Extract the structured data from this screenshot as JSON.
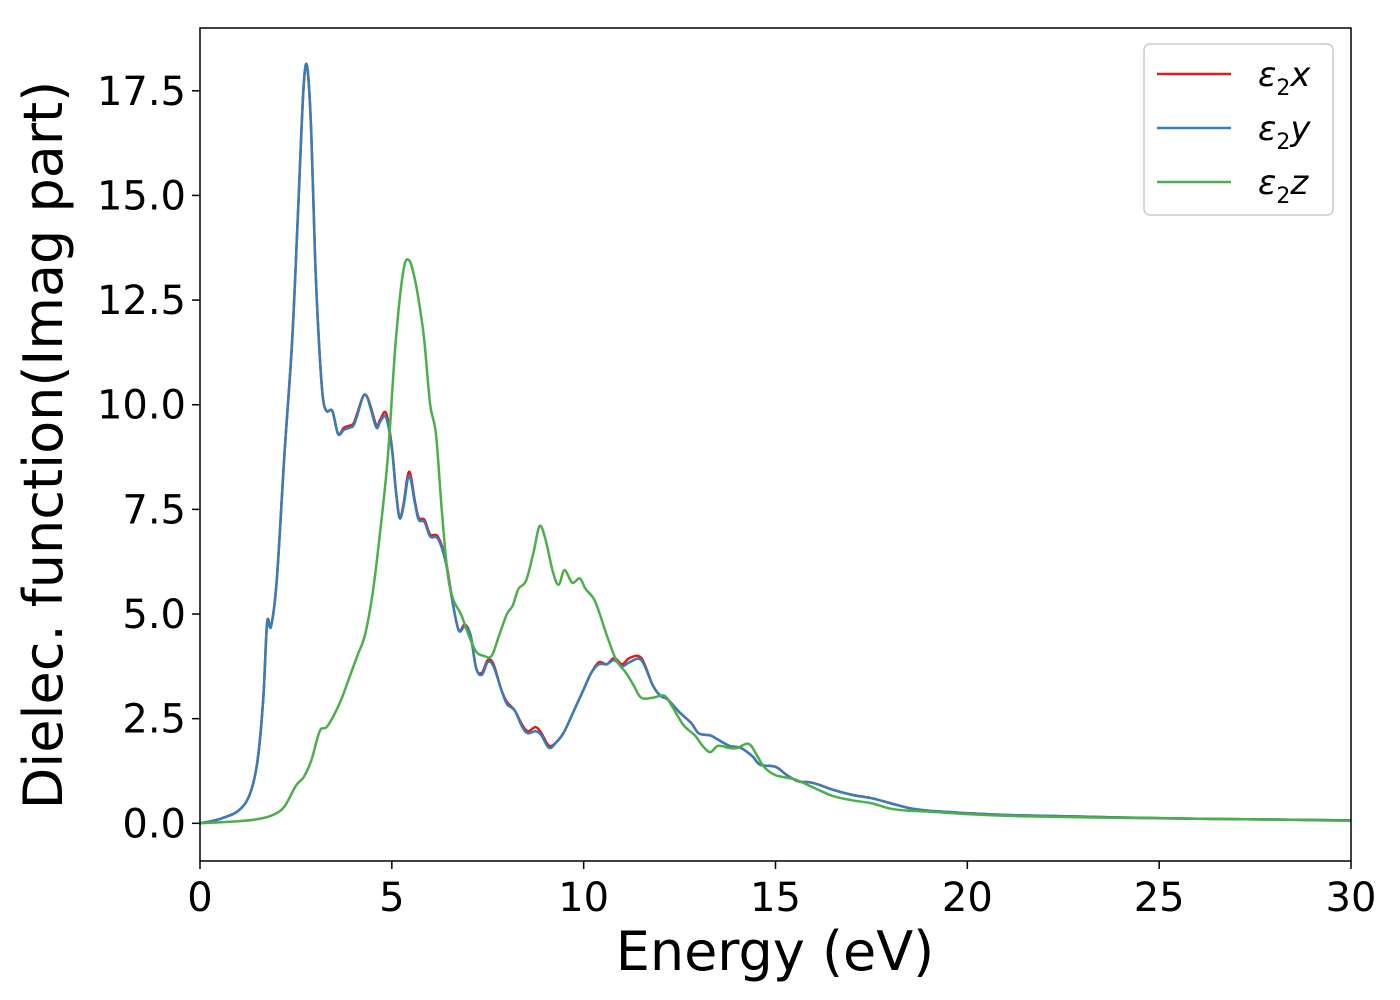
{
  "chart_data": {
    "type": "line",
    "title": "",
    "xlabel": "Energy (eV)",
    "ylabel": "Dielec. function(Imag part)",
    "xlim": [
      0,
      30
    ],
    "ylim": [
      -0.9,
      19.0
    ],
    "xticks": [
      0,
      5,
      10,
      15,
      20,
      25,
      30
    ],
    "xtick_labels": [
      "0",
      "5",
      "10",
      "15",
      "20",
      "25",
      "30"
    ],
    "yticks": [
      0.0,
      2.5,
      5.0,
      7.5,
      10.0,
      12.5,
      15.0,
      17.5
    ],
    "ytick_labels": [
      "0.0",
      "2.5",
      "5.0",
      "7.5",
      "10.0",
      "12.5",
      "15.0",
      "17.5"
    ],
    "grid": false,
    "legend_position": "top-right",
    "series": [
      {
        "name": "ε2x",
        "legend_base": "ε",
        "legend_sub": "2",
        "legend_var": "x",
        "color": "#e41a1c",
        "points": [
          [
            0,
            0.0
          ],
          [
            0.5,
            0.1
          ],
          [
            1.0,
            0.3
          ],
          [
            1.3,
            0.7
          ],
          [
            1.5,
            1.5
          ],
          [
            1.65,
            3.0
          ],
          [
            1.75,
            4.8
          ],
          [
            1.85,
            4.7
          ],
          [
            2.0,
            5.8
          ],
          [
            2.2,
            8.8
          ],
          [
            2.4,
            11.5
          ],
          [
            2.55,
            14.5
          ],
          [
            2.7,
            17.6
          ],
          [
            2.8,
            18.0
          ],
          [
            2.9,
            16.5
          ],
          [
            3.0,
            13.5
          ],
          [
            3.1,
            11.5
          ],
          [
            3.2,
            10.2
          ],
          [
            3.3,
            9.85
          ],
          [
            3.45,
            9.85
          ],
          [
            3.6,
            9.3
          ],
          [
            3.75,
            9.45
          ],
          [
            3.9,
            9.5
          ],
          [
            4.0,
            9.55
          ],
          [
            4.1,
            9.8
          ],
          [
            4.25,
            10.2
          ],
          [
            4.35,
            10.2
          ],
          [
            4.45,
            9.95
          ],
          [
            4.6,
            9.5
          ],
          [
            4.7,
            9.65
          ],
          [
            4.85,
            9.8
          ],
          [
            5.0,
            9.0
          ],
          [
            5.1,
            8.0
          ],
          [
            5.2,
            7.3
          ],
          [
            5.3,
            7.6
          ],
          [
            5.45,
            8.4
          ],
          [
            5.6,
            7.7
          ],
          [
            5.7,
            7.3
          ],
          [
            5.85,
            7.25
          ],
          [
            6.0,
            6.9
          ],
          [
            6.2,
            6.85
          ],
          [
            6.4,
            6.3
          ],
          [
            6.6,
            5.2
          ],
          [
            6.75,
            4.6
          ],
          [
            6.9,
            4.75
          ],
          [
            7.05,
            4.5
          ],
          [
            7.2,
            3.7
          ],
          [
            7.35,
            3.6
          ],
          [
            7.5,
            3.9
          ],
          [
            7.65,
            3.8
          ],
          [
            7.85,
            3.2
          ],
          [
            8.0,
            2.9
          ],
          [
            8.2,
            2.7
          ],
          [
            8.4,
            2.35
          ],
          [
            8.55,
            2.2
          ],
          [
            8.75,
            2.3
          ],
          [
            8.9,
            2.15
          ],
          [
            9.1,
            1.85
          ],
          [
            9.3,
            1.95
          ],
          [
            9.5,
            2.2
          ],
          [
            9.8,
            2.8
          ],
          [
            10.0,
            3.2
          ],
          [
            10.2,
            3.6
          ],
          [
            10.4,
            3.85
          ],
          [
            10.6,
            3.8
          ],
          [
            10.8,
            3.95
          ],
          [
            11.0,
            3.8
          ],
          [
            11.2,
            3.95
          ],
          [
            11.5,
            3.95
          ],
          [
            11.8,
            3.3
          ],
          [
            12.0,
            3.05
          ],
          [
            12.2,
            2.95
          ],
          [
            12.5,
            2.65
          ],
          [
            12.8,
            2.4
          ],
          [
            13.0,
            2.15
          ],
          [
            13.3,
            2.1
          ],
          [
            13.5,
            2.0
          ],
          [
            13.8,
            1.85
          ],
          [
            14.1,
            1.8
          ],
          [
            14.4,
            1.6
          ],
          [
            14.6,
            1.4
          ],
          [
            15.0,
            1.35
          ],
          [
            15.3,
            1.15
          ],
          [
            15.6,
            1.0
          ],
          [
            15.9,
            0.98
          ],
          [
            16.2,
            0.9
          ],
          [
            16.5,
            0.8
          ],
          [
            17.0,
            0.68
          ],
          [
            17.5,
            0.6
          ],
          [
            18.0,
            0.48
          ],
          [
            18.5,
            0.36
          ],
          [
            19.0,
            0.3
          ],
          [
            19.5,
            0.27
          ],
          [
            20.0,
            0.24
          ],
          [
            21.0,
            0.2
          ],
          [
            22.0,
            0.18
          ],
          [
            24.0,
            0.14
          ],
          [
            26.0,
            0.11
          ],
          [
            28.0,
            0.09
          ],
          [
            30.0,
            0.07
          ]
        ]
      },
      {
        "name": "ε2y",
        "legend_base": "ε",
        "legend_sub": "2",
        "legend_var": "y",
        "color": "#377eb8",
        "points": [
          [
            0,
            0.0
          ],
          [
            0.5,
            0.1
          ],
          [
            1.0,
            0.3
          ],
          [
            1.3,
            0.7
          ],
          [
            1.5,
            1.5
          ],
          [
            1.65,
            3.0
          ],
          [
            1.75,
            4.8
          ],
          [
            1.85,
            4.7
          ],
          [
            2.0,
            5.8
          ],
          [
            2.2,
            8.8
          ],
          [
            2.4,
            11.5
          ],
          [
            2.55,
            14.5
          ],
          [
            2.7,
            17.6
          ],
          [
            2.8,
            18.05
          ],
          [
            2.9,
            16.5
          ],
          [
            3.0,
            13.5
          ],
          [
            3.1,
            11.5
          ],
          [
            3.2,
            10.2
          ],
          [
            3.3,
            9.85
          ],
          [
            3.45,
            9.85
          ],
          [
            3.6,
            9.3
          ],
          [
            3.75,
            9.4
          ],
          [
            3.9,
            9.45
          ],
          [
            4.0,
            9.5
          ],
          [
            4.1,
            9.75
          ],
          [
            4.25,
            10.2
          ],
          [
            4.35,
            10.2
          ],
          [
            4.45,
            9.9
          ],
          [
            4.6,
            9.45
          ],
          [
            4.7,
            9.6
          ],
          [
            4.85,
            9.7
          ],
          [
            5.0,
            8.95
          ],
          [
            5.1,
            8.0
          ],
          [
            5.2,
            7.3
          ],
          [
            5.3,
            7.55
          ],
          [
            5.45,
            8.3
          ],
          [
            5.6,
            7.65
          ],
          [
            5.7,
            7.25
          ],
          [
            5.85,
            7.2
          ],
          [
            6.0,
            6.85
          ],
          [
            6.2,
            6.8
          ],
          [
            6.4,
            6.25
          ],
          [
            6.6,
            5.2
          ],
          [
            6.75,
            4.6
          ],
          [
            6.9,
            4.7
          ],
          [
            7.05,
            4.5
          ],
          [
            7.2,
            3.7
          ],
          [
            7.35,
            3.55
          ],
          [
            7.5,
            3.85
          ],
          [
            7.65,
            3.75
          ],
          [
            7.85,
            3.2
          ],
          [
            8.0,
            2.85
          ],
          [
            8.2,
            2.7
          ],
          [
            8.4,
            2.3
          ],
          [
            8.55,
            2.15
          ],
          [
            8.75,
            2.2
          ],
          [
            8.9,
            2.1
          ],
          [
            9.1,
            1.8
          ],
          [
            9.3,
            1.95
          ],
          [
            9.5,
            2.2
          ],
          [
            9.8,
            2.8
          ],
          [
            10.0,
            3.2
          ],
          [
            10.2,
            3.6
          ],
          [
            10.4,
            3.8
          ],
          [
            10.6,
            3.8
          ],
          [
            10.8,
            3.9
          ],
          [
            11.0,
            3.75
          ],
          [
            11.2,
            3.85
          ],
          [
            11.5,
            3.9
          ],
          [
            11.8,
            3.3
          ],
          [
            12.0,
            3.05
          ],
          [
            12.2,
            2.95
          ],
          [
            12.5,
            2.65
          ],
          [
            12.8,
            2.4
          ],
          [
            13.0,
            2.15
          ],
          [
            13.3,
            2.1
          ],
          [
            13.5,
            2.0
          ],
          [
            13.8,
            1.85
          ],
          [
            14.1,
            1.8
          ],
          [
            14.4,
            1.6
          ],
          [
            14.6,
            1.4
          ],
          [
            15.0,
            1.35
          ],
          [
            15.3,
            1.15
          ],
          [
            15.6,
            1.0
          ],
          [
            15.9,
            0.98
          ],
          [
            16.2,
            0.9
          ],
          [
            16.5,
            0.8
          ],
          [
            17.0,
            0.68
          ],
          [
            17.5,
            0.6
          ],
          [
            18.0,
            0.48
          ],
          [
            18.5,
            0.36
          ],
          [
            19.0,
            0.3
          ],
          [
            19.5,
            0.27
          ],
          [
            20.0,
            0.24
          ],
          [
            21.0,
            0.2
          ],
          [
            22.0,
            0.18
          ],
          [
            24.0,
            0.14
          ],
          [
            26.0,
            0.11
          ],
          [
            28.0,
            0.09
          ],
          [
            30.0,
            0.07
          ]
        ]
      },
      {
        "name": "ε2z",
        "legend_base": "ε",
        "legend_sub": "2",
        "legend_var": "z",
        "color": "#4daf4a",
        "points": [
          [
            0,
            0.0
          ],
          [
            1.0,
            0.05
          ],
          [
            1.5,
            0.1
          ],
          [
            1.9,
            0.2
          ],
          [
            2.2,
            0.4
          ],
          [
            2.5,
            0.9
          ],
          [
            2.7,
            1.1
          ],
          [
            2.9,
            1.5
          ],
          [
            3.05,
            2.0
          ],
          [
            3.15,
            2.25
          ],
          [
            3.3,
            2.3
          ],
          [
            3.5,
            2.6
          ],
          [
            3.7,
            3.0
          ],
          [
            3.9,
            3.5
          ],
          [
            4.1,
            4.0
          ],
          [
            4.3,
            4.5
          ],
          [
            4.5,
            5.5
          ],
          [
            4.7,
            7.0
          ],
          [
            4.9,
            8.8
          ],
          [
            5.1,
            11.5
          ],
          [
            5.3,
            13.2
          ],
          [
            5.45,
            13.45
          ],
          [
            5.6,
            13.0
          ],
          [
            5.75,
            12.2
          ],
          [
            5.85,
            11.5
          ],
          [
            6.0,
            10.0
          ],
          [
            6.15,
            9.3
          ],
          [
            6.3,
            7.5
          ],
          [
            6.45,
            6.0
          ],
          [
            6.6,
            5.35
          ],
          [
            6.8,
            5.0
          ],
          [
            7.0,
            4.5
          ],
          [
            7.2,
            4.1
          ],
          [
            7.4,
            4.0
          ],
          [
            7.6,
            4.0
          ],
          [
            7.8,
            4.5
          ],
          [
            8.0,
            5.0
          ],
          [
            8.15,
            5.2
          ],
          [
            8.3,
            5.6
          ],
          [
            8.5,
            5.8
          ],
          [
            8.7,
            6.5
          ],
          [
            8.85,
            7.1
          ],
          [
            9.0,
            6.8
          ],
          [
            9.2,
            6.0
          ],
          [
            9.35,
            5.7
          ],
          [
            9.5,
            6.05
          ],
          [
            9.7,
            5.75
          ],
          [
            9.9,
            5.85
          ],
          [
            10.05,
            5.6
          ],
          [
            10.3,
            5.3
          ],
          [
            10.6,
            4.5
          ],
          [
            10.85,
            3.9
          ],
          [
            11.1,
            3.6
          ],
          [
            11.3,
            3.3
          ],
          [
            11.5,
            3.0
          ],
          [
            11.8,
            3.0
          ],
          [
            12.1,
            3.05
          ],
          [
            12.3,
            2.8
          ],
          [
            12.6,
            2.35
          ],
          [
            12.9,
            2.1
          ],
          [
            13.1,
            1.85
          ],
          [
            13.3,
            1.7
          ],
          [
            13.5,
            1.85
          ],
          [
            13.8,
            1.8
          ],
          [
            14.0,
            1.8
          ],
          [
            14.3,
            1.9
          ],
          [
            14.5,
            1.65
          ],
          [
            14.7,
            1.35
          ],
          [
            15.0,
            1.15
          ],
          [
            15.5,
            1.05
          ],
          [
            16.0,
            0.85
          ],
          [
            16.5,
            0.65
          ],
          [
            17.0,
            0.55
          ],
          [
            17.5,
            0.48
          ],
          [
            18.0,
            0.35
          ],
          [
            18.5,
            0.3
          ],
          [
            19.0,
            0.28
          ],
          [
            19.5,
            0.25
          ],
          [
            20.0,
            0.22
          ],
          [
            21.0,
            0.18
          ],
          [
            22.0,
            0.16
          ],
          [
            24.0,
            0.13
          ],
          [
            26.0,
            0.11
          ],
          [
            28.0,
            0.09
          ],
          [
            30.0,
            0.06
          ]
        ]
      }
    ]
  }
}
